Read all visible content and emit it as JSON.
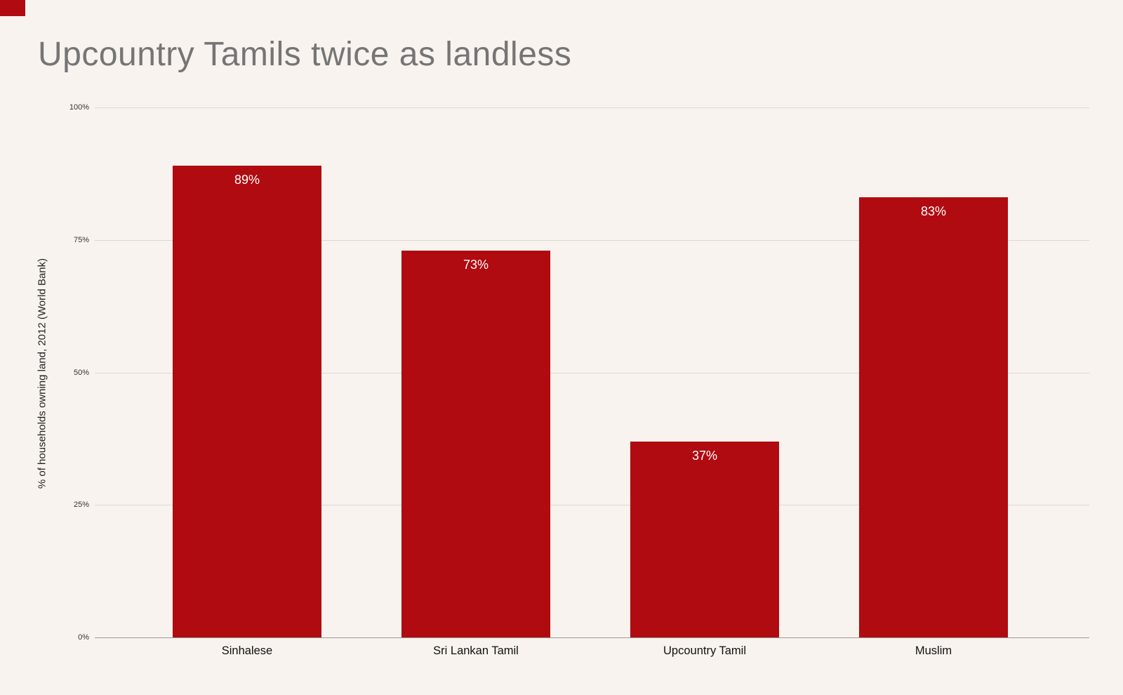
{
  "chart_data": {
    "type": "bar",
    "title": "Upcountry Tamils twice as landless",
    "categories": [
      "Sinhalese",
      "Sri Lankan Tamil",
      "Upcountry Tamil",
      "Muslim"
    ],
    "values": [
      89,
      73,
      37,
      83
    ],
    "value_labels": [
      "89%",
      "73%",
      "37%",
      "83%"
    ],
    "xlabel": "",
    "ylabel": "% of households owning land, 2012 (World Bank)",
    "ylim": [
      0,
      100
    ],
    "yticks": [
      {
        "value": 0,
        "label": "0%"
      },
      {
        "value": 25,
        "label": "25%"
      },
      {
        "value": 50,
        "label": "50%"
      },
      {
        "value": 75,
        "label": "75%"
      },
      {
        "value": 100,
        "label": "100%"
      }
    ],
    "grid": "horizontal",
    "legend": "none",
    "bar_color": "#b00b10",
    "value_label_color": "#ffffff"
  },
  "style": {
    "background_color": "#f8f3ee",
    "title_color": "#757575",
    "gridline_color": "#ded8d2",
    "axis_line_color": "#9a9a9a",
    "tick_label_color": "#333333",
    "category_label_color": "#111111",
    "y_axis_title_color": "#222222",
    "corner_mark_color": "#b00b10"
  }
}
